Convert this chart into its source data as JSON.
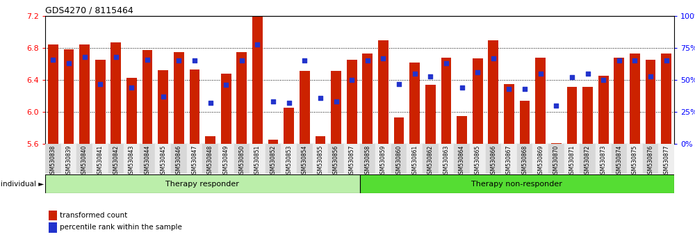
{
  "title": "GDS4270 / 8115464",
  "ylim_left": [
    5.6,
    7.2
  ],
  "ylim_right": [
    0,
    100
  ],
  "yticks_left": [
    5.6,
    6.0,
    6.4,
    6.8,
    7.2
  ],
  "yticks_right": [
    0,
    25,
    50,
    75,
    100
  ],
  "ytick_labels_right": [
    "0%",
    "25%",
    "50%",
    "75%",
    "100%"
  ],
  "bar_color": "#cc2200",
  "dot_color": "#2233cc",
  "samples": [
    "GSM530838",
    "GSM530839",
    "GSM530840",
    "GSM530841",
    "GSM530842",
    "GSM530843",
    "GSM530844",
    "GSM530845",
    "GSM530846",
    "GSM530847",
    "GSM530848",
    "GSM530849",
    "GSM530850",
    "GSM530851",
    "GSM530852",
    "GSM530853",
    "GSM530854",
    "GSM530855",
    "GSM530856",
    "GSM530857",
    "GSM530858",
    "GSM530859",
    "GSM530860",
    "GSM530861",
    "GSM530862",
    "GSM530863",
    "GSM530864",
    "GSM530865",
    "GSM530866",
    "GSM530867",
    "GSM530868",
    "GSM530869",
    "GSM530870",
    "GSM530871",
    "GSM530872",
    "GSM530873",
    "GSM530874",
    "GSM530875",
    "GSM530876",
    "GSM530877"
  ],
  "red_values": [
    6.84,
    6.78,
    6.84,
    6.65,
    6.87,
    6.43,
    6.77,
    6.52,
    6.75,
    6.53,
    5.7,
    6.48,
    6.75,
    7.19,
    5.65,
    6.05,
    6.51,
    5.7,
    6.51,
    6.65,
    6.73,
    6.9,
    5.93,
    6.62,
    6.34,
    6.68,
    5.95,
    6.67,
    6.9,
    6.35,
    6.14,
    6.68,
    5.61,
    6.31,
    6.31,
    6.45,
    6.68,
    6.73,
    6.65,
    6.73
  ],
  "blue_percentiles": [
    66,
    63,
    68,
    47,
    68,
    44,
    66,
    37,
    65,
    65,
    32,
    46,
    65,
    78,
    33,
    32,
    65,
    36,
    33,
    50,
    65,
    67,
    47,
    55,
    53,
    63,
    44,
    56,
    67,
    43,
    43,
    55,
    30,
    52,
    55,
    50,
    65,
    65,
    53,
    65
  ],
  "group1_label": "Therapy responder",
  "group2_label": "Therapy non-responder",
  "group1_count": 20,
  "group1_color": "#bbeeaa",
  "group2_color": "#55dd33",
  "legend_label_red": "transformed count",
  "legend_label_blue": "percentile rank within the sample",
  "individual_label": "individual",
  "bar_width": 0.65,
  "base": 5.6
}
